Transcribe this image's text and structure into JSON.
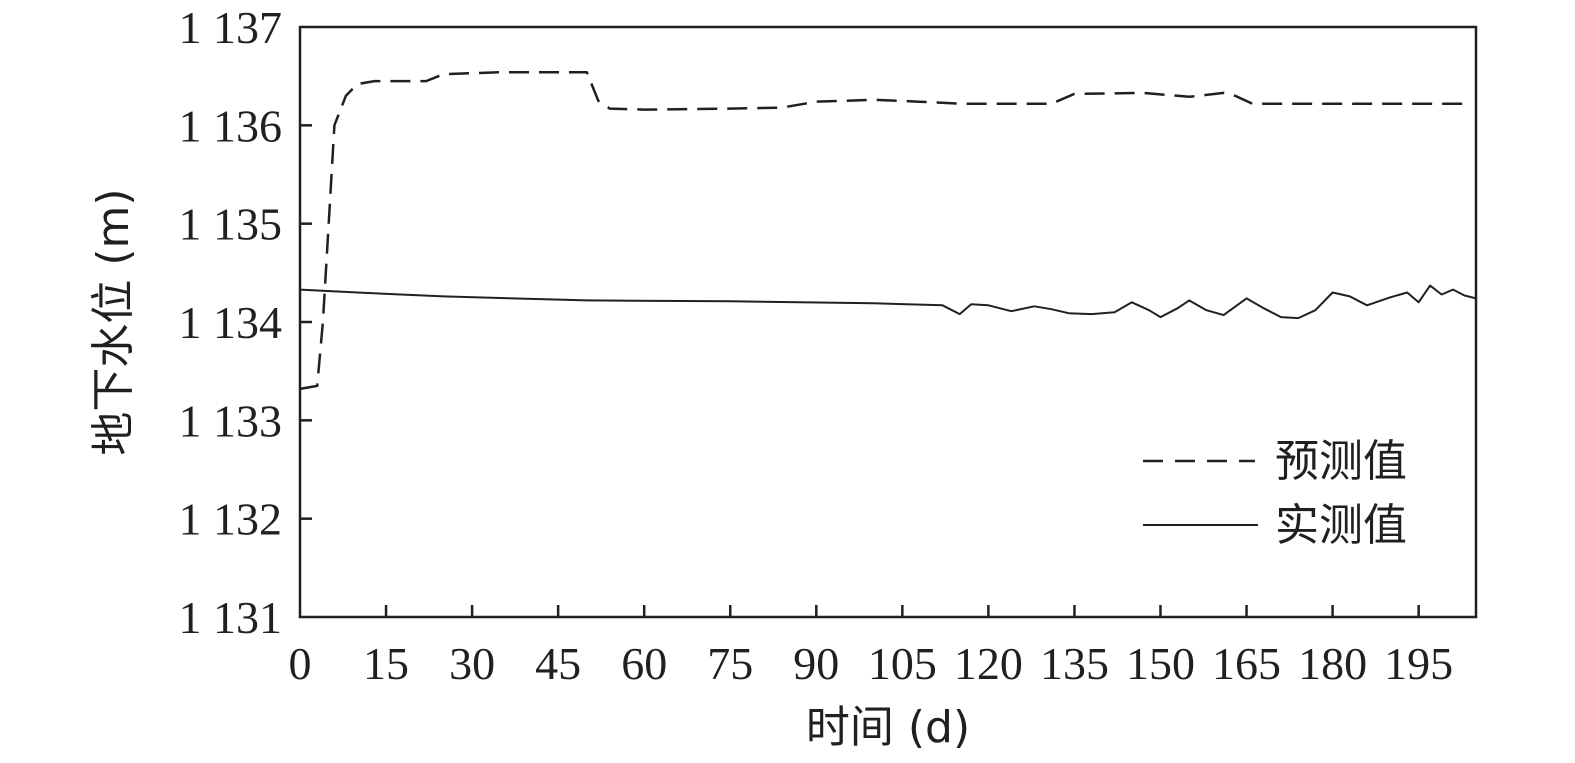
{
  "chart_data": {
    "type": "line",
    "title": "",
    "xlabel": "时间 (d)",
    "ylabel": "地下水位 (m)",
    "xlim": [
      0,
      205
    ],
    "ylim": [
      1131,
      1137
    ],
    "xticks": [
      0,
      15,
      30,
      45,
      60,
      75,
      90,
      105,
      120,
      135,
      150,
      165,
      180,
      195
    ],
    "yticks": [
      1131,
      1132,
      1133,
      1134,
      1135,
      1136,
      1137
    ],
    "ytick_labels": [
      "1 131",
      "1 132",
      "1 133",
      "1 134",
      "1 135",
      "1 136",
      "1 137"
    ],
    "grid": false,
    "legend_position": "bottom-right",
    "series": [
      {
        "name": "预测值",
        "style": "dashed",
        "color": "#231f20",
        "points": [
          [
            0,
            1133.32
          ],
          [
            3,
            1133.35
          ],
          [
            4,
            1134.0
          ],
          [
            5,
            1135.0
          ],
          [
            6,
            1136.0
          ],
          [
            8,
            1136.3
          ],
          [
            10,
            1136.42
          ],
          [
            13,
            1136.45
          ],
          [
            22,
            1136.45
          ],
          [
            25,
            1136.52
          ],
          [
            35,
            1136.54
          ],
          [
            50,
            1136.54
          ],
          [
            52,
            1136.25
          ],
          [
            54,
            1136.17
          ],
          [
            60,
            1136.16
          ],
          [
            75,
            1136.17
          ],
          [
            84,
            1136.18
          ],
          [
            90,
            1136.24
          ],
          [
            100,
            1136.26
          ],
          [
            108,
            1136.24
          ],
          [
            115,
            1136.22
          ],
          [
            125,
            1136.22
          ],
          [
            131,
            1136.22
          ],
          [
            135,
            1136.32
          ],
          [
            147,
            1136.33
          ],
          [
            155,
            1136.29
          ],
          [
            161,
            1136.33
          ],
          [
            163,
            1136.3
          ],
          [
            166,
            1136.22
          ],
          [
            180,
            1136.22
          ],
          [
            195,
            1136.22
          ],
          [
            204,
            1136.22
          ]
        ]
      },
      {
        "name": "实测值",
        "style": "solid",
        "color": "#231f20",
        "points": [
          [
            0,
            1134.33
          ],
          [
            10,
            1134.3
          ],
          [
            25,
            1134.26
          ],
          [
            50,
            1134.22
          ],
          [
            75,
            1134.21
          ],
          [
            100,
            1134.19
          ],
          [
            112,
            1134.17
          ],
          [
            115,
            1134.08
          ],
          [
            117,
            1134.18
          ],
          [
            120,
            1134.17
          ],
          [
            124,
            1134.11
          ],
          [
            128,
            1134.16
          ],
          [
            131,
            1134.13
          ],
          [
            134,
            1134.09
          ],
          [
            138,
            1134.08
          ],
          [
            142,
            1134.1
          ],
          [
            145,
            1134.2
          ],
          [
            148,
            1134.12
          ],
          [
            150,
            1134.05
          ],
          [
            153,
            1134.14
          ],
          [
            155,
            1134.22
          ],
          [
            158,
            1134.12
          ],
          [
            161,
            1134.07
          ],
          [
            165,
            1134.24
          ],
          [
            168,
            1134.14
          ],
          [
            171,
            1134.05
          ],
          [
            174,
            1134.04
          ],
          [
            177,
            1134.12
          ],
          [
            180,
            1134.3
          ],
          [
            183,
            1134.26
          ],
          [
            186,
            1134.17
          ],
          [
            190,
            1134.25
          ],
          [
            193,
            1134.3
          ],
          [
            195,
            1134.2
          ],
          [
            197,
            1134.37
          ],
          [
            199,
            1134.28
          ],
          [
            201,
            1134.33
          ],
          [
            203,
            1134.27
          ],
          [
            205,
            1134.24
          ]
        ]
      }
    ]
  }
}
